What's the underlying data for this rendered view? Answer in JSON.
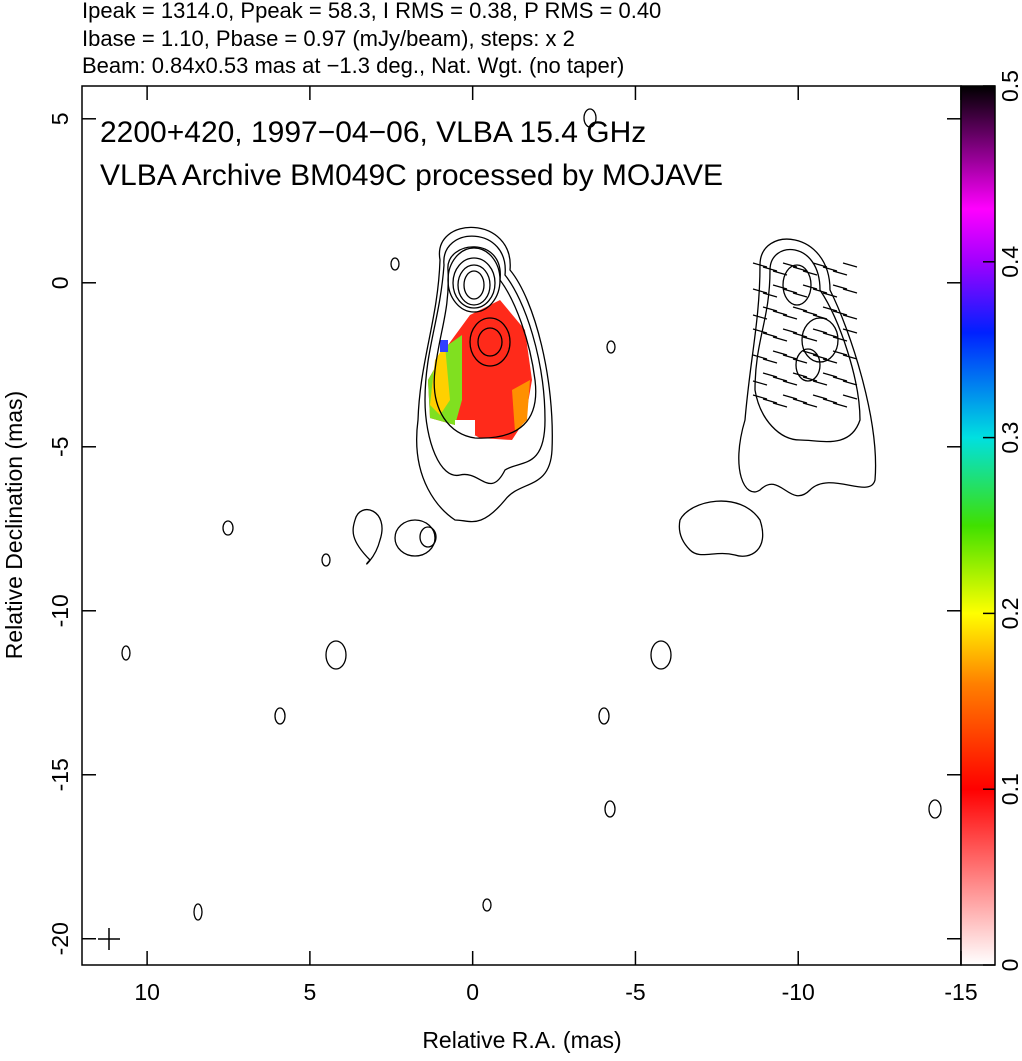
{
  "chart_data": {
    "type": "map",
    "header": [
      "Ipeak = 1314.0, Ppeak = 58.3, I RMS = 0.38, P RMS = 0.40",
      "Ibase = 1.10, Pbase = 0.97 (mJy/beam), steps: x 2",
      "Beam: 0.84x0.53 mas at −1.3 deg., Nat. Wgt. (no taper)"
    ],
    "annotations": [
      "2200+420, 1997−04−06, VLBA 15.4 GHz",
      "VLBA Archive BM049C processed by MOJAVE"
    ],
    "xlabel": "Relative R.A. (mas)",
    "ylabel": "Relative Declination (mas)",
    "xlim": [
      12,
      -15
    ],
    "ylim": [
      -20.8,
      6
    ],
    "xticks": [
      10,
      5,
      0,
      -5,
      -10,
      -15
    ],
    "yticks": [
      5,
      0,
      -5,
      -10,
      -15,
      -20
    ],
    "colorbar": {
      "lim": [
        0,
        0.5
      ],
      "ticks": [
        0,
        0.1,
        0.2,
        0.3,
        0.4,
        0.5
      ]
    }
  }
}
